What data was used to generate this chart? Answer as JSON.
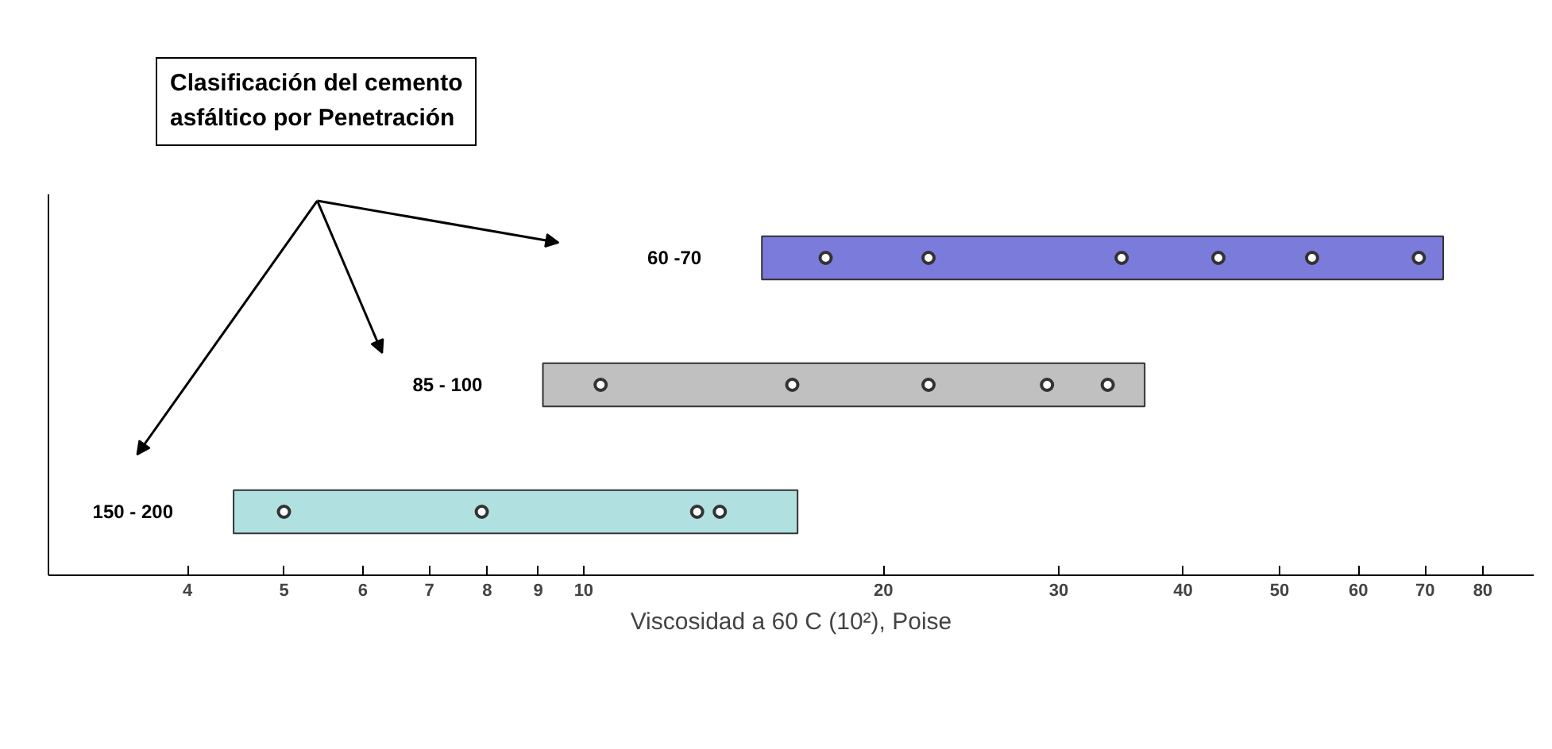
{
  "chart_data": {
    "type": "bar",
    "orientation": "horizontal",
    "xlabel": "Viscosidad a 60 C (10²), Poise",
    "categories": [
      "60 -70",
      "85 - 100",
      "150 - 200"
    ],
    "log": "x",
    "xlim": [
      2.9,
      90
    ],
    "xticks": [
      4,
      5,
      6,
      7,
      8,
      9,
      10,
      20,
      30,
      40,
      50,
      60,
      70,
      80
    ],
    "grid": false,
    "tick_labels": "x",
    "marker": "circle",
    "annotations": [
      "Clasificación del cemento\nasfáltico por Penetración"
    ],
    "series": [
      {
        "type": "bar",
        "base": [
          15.1,
          9.1,
          4.45
        ],
        "values": [
          57.9,
          27.5,
          11.95
        ],
        "colors": [
          "#7b7bdb",
          "#c0c0c0",
          "#b0e0e0"
        ]
      },
      {
        "type": "scatter",
        "color": "#333333",
        "x": [
          "60 -70",
          "60 -70",
          "60 -70",
          "60 -70",
          "60 -70",
          "60 -70",
          "85 - 100",
          "85 - 100",
          "85 - 100",
          "85 - 100",
          "85 - 100",
          "150 - 200",
          "150 - 200",
          "150 - 200",
          "150 - 200"
        ],
        "values": [
          17.5,
          22.2,
          34.7,
          43.4,
          53.9,
          69,
          10.4,
          16.2,
          22.2,
          29.2,
          33.6,
          5,
          7.9,
          13,
          13.7
        ]
      }
    ]
  }
}
